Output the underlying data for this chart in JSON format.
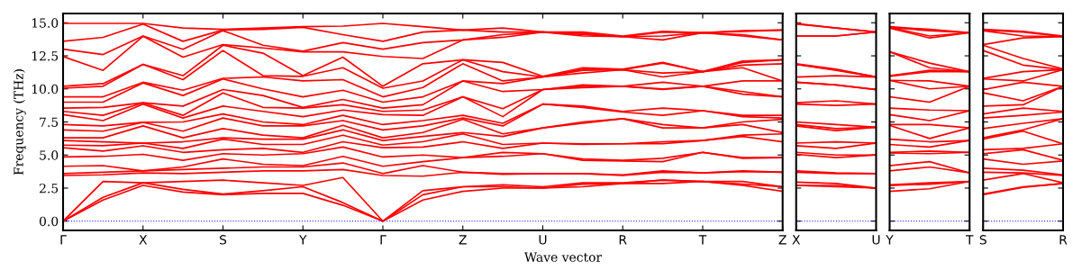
{
  "chart_data": [
    {
      "type": "line",
      "xlabel": "Wave vector",
      "ylabel": "Frequency (THz)",
      "categories": [
        "Γ",
        null,
        "X",
        null,
        "S",
        null,
        "Y",
        null,
        "Γ",
        null,
        "Z",
        null,
        "U",
        null,
        "R",
        null,
        "T",
        null,
        "Z"
      ],
      "ylim": [
        -0.7,
        15.7
      ],
      "yticks": [
        {
          "value": 0,
          "label": "0.0"
        },
        {
          "value": 2.5,
          "label": "2.5"
        },
        {
          "value": 5,
          "label": "5.0"
        },
        {
          "value": 7.5,
          "label": "7.5"
        },
        {
          "value": 10,
          "label": "10.0"
        },
        {
          "value": 12.5,
          "label": "12.5"
        },
        {
          "value": 15,
          "label": "15.0"
        }
      ],
      "ref_lines": [
        {
          "axis": "y",
          "value": 0,
          "color": "#0000ff",
          "line_style": "dotted"
        }
      ],
      "series": [
        {
          "color": "#ff0000",
          "values": [
            0,
            1.6,
            2.7,
            2.2,
            2.0,
            2.1,
            2.1,
            1.2,
            0,
            1.6,
            2.25,
            2.5,
            2.5,
            2.6,
            2.85,
            2.85,
            3.0,
            2.7,
            2.25
          ]
        },
        {
          "color": "#ff0000",
          "values": [
            0,
            1.8,
            2.9,
            2.4,
            2.05,
            2.3,
            2.6,
            1.4,
            0,
            2.0,
            2.6,
            2.6,
            2.5,
            2.8,
            2.85,
            3.1,
            3.0,
            2.8,
            2.6
          ]
        },
        {
          "color": "#ff0000",
          "values": [
            0,
            3.0,
            2.9,
            3.0,
            3.1,
            2.9,
            2.7,
            3.3,
            0,
            2.3,
            2.6,
            2.75,
            2.6,
            2.9,
            2.9,
            3.1,
            3.0,
            3.0,
            2.6
          ]
        },
        {
          "color": "#ff0000",
          "values": [
            3.45,
            3.5,
            3.65,
            3.6,
            3.7,
            3.8,
            3.8,
            3.9,
            3.45,
            3.4,
            3.7,
            3.55,
            3.6,
            3.6,
            3.45,
            3.7,
            3.65,
            3.75,
            3.7
          ]
        },
        {
          "color": "#ff0000",
          "values": [
            3.6,
            3.7,
            3.8,
            3.9,
            4.0,
            4.1,
            4.1,
            4.4,
            3.6,
            4.2,
            3.7,
            3.6,
            3.6,
            3.6,
            3.5,
            3.8,
            3.65,
            3.8,
            3.7
          ]
        },
        {
          "color": "#ff0000",
          "values": [
            4.15,
            4.2,
            3.8,
            4.1,
            4.7,
            4.3,
            4.2,
            4.9,
            4.15,
            4.5,
            4.8,
            4.9,
            5.1,
            4.6,
            4.55,
            4.5,
            5.2,
            4.75,
            4.8
          ]
        },
        {
          "color": "#ff0000",
          "values": [
            4.85,
            4.9,
            5.05,
            4.6,
            5.1,
            5.0,
            5.1,
            5.6,
            4.85,
            5.0,
            4.8,
            5.2,
            5.1,
            4.7,
            4.6,
            4.75,
            5.2,
            4.8,
            4.8
          ]
        },
        {
          "color": "#ff0000",
          "values": [
            5.55,
            5.3,
            5.7,
            5.2,
            5.4,
            5.5,
            5.2,
            6.0,
            5.55,
            5.6,
            6.0,
            5.5,
            5.9,
            5.8,
            5.85,
            5.85,
            6.1,
            6.4,
            6.0
          ]
        },
        {
          "color": "#ff0000",
          "values": [
            5.75,
            5.7,
            5.9,
            5.5,
            6.2,
            5.8,
            5.8,
            6.5,
            5.75,
            6.0,
            6.6,
            5.8,
            5.9,
            5.85,
            5.85,
            6.0,
            6.1,
            6.5,
            6.6
          ]
        },
        {
          "color": "#ff0000",
          "values": [
            6.1,
            6.0,
            5.9,
            6.0,
            6.3,
            6.2,
            6.2,
            6.9,
            6.1,
            6.4,
            6.7,
            6.4,
            7.05,
            7.4,
            7.75,
            7.05,
            7.05,
            7.3,
            6.7
          ]
        },
        {
          "color": "#ff0000",
          "values": [
            6.3,
            6.3,
            7.2,
            6.3,
            7.0,
            6.5,
            6.3,
            7.25,
            6.3,
            6.7,
            7.7,
            6.6,
            7.05,
            7.5,
            7.75,
            7.3,
            7.05,
            7.5,
            7.7
          ]
        },
        {
          "color": "#ff0000",
          "values": [
            6.9,
            6.8,
            7.47,
            6.8,
            7.8,
            7.2,
            7.2,
            7.6,
            6.9,
            7.2,
            7.8,
            7.2,
            8.85,
            8.6,
            8.25,
            8.0,
            8.35,
            7.9,
            7.8
          ]
        },
        {
          "color": "#ff0000",
          "values": [
            7.3,
            7.2,
            7.47,
            7.5,
            8.1,
            7.5,
            7.3,
            8.0,
            7.3,
            7.6,
            8.0,
            7.4,
            8.85,
            8.7,
            8.3,
            8.55,
            8.35,
            8.0,
            8.0
          ]
        },
        {
          "color": "#ff0000",
          "values": [
            8.05,
            7.6,
            8.85,
            7.8,
            8.7,
            8.3,
            7.9,
            8.4,
            8.05,
            8.0,
            9.4,
            7.9,
            9.95,
            10.1,
            10.2,
            9.95,
            10.2,
            9.6,
            9.4
          ]
        },
        {
          "color": "#ff0000",
          "values": [
            8.3,
            8.0,
            8.95,
            8.0,
            9.7,
            8.6,
            8.55,
            8.8,
            8.3,
            8.4,
            9.4,
            8.5,
            9.95,
            10.2,
            10.2,
            10.0,
            10.2,
            9.8,
            9.4
          ]
        },
        {
          "color": "#ff0000",
          "values": [
            8.55,
            8.6,
            8.95,
            8.7,
            9.95,
            9.5,
            8.6,
            9.2,
            8.55,
            8.8,
            10.6,
            9.8,
            9.95,
            10.3,
            10.2,
            10.5,
            10.2,
            10.6,
            10.6
          ]
        },
        {
          "color": "#ff0000",
          "values": [
            9.0,
            9.0,
            10.45,
            9.5,
            10.75,
            10.0,
            9.4,
            9.9,
            9.0,
            9.4,
            10.6,
            10.4,
            10.9,
            11.2,
            11.45,
            10.9,
            11.3,
            11.6,
            10.6
          ]
        },
        {
          "color": "#ff0000",
          "values": [
            9.4,
            9.4,
            10.5,
            9.9,
            10.8,
            10.9,
            10.6,
            10.7,
            9.4,
            10.1,
            11.9,
            10.6,
            10.9,
            11.4,
            11.45,
            11.2,
            11.3,
            11.8,
            11.9
          ]
        },
        {
          "color": "#ff0000",
          "values": [
            10.05,
            10.2,
            11.85,
            10.7,
            12.9,
            11.0,
            10.95,
            11.6,
            10.05,
            10.6,
            12.2,
            11.3,
            10.9,
            11.5,
            11.45,
            11.95,
            11.3,
            12.0,
            12.2
          ]
        },
        {
          "color": "#ff0000",
          "values": [
            10.2,
            10.4,
            11.85,
            11.0,
            13.3,
            12.7,
            11.0,
            12.4,
            10.2,
            11.9,
            12.2,
            12.0,
            10.95,
            11.6,
            11.5,
            12.0,
            11.3,
            12.1,
            12.2
          ]
        },
        {
          "color": "#ff0000",
          "values": [
            12.45,
            11.4,
            13.98,
            12.4,
            13.35,
            13.1,
            12.8,
            12.8,
            12.45,
            12.3,
            13.7,
            13.9,
            14.3,
            14.0,
            13.95,
            13.7,
            14.25,
            14.0,
            13.7
          ]
        },
        {
          "color": "#ff0000",
          "values": [
            13.0,
            12.6,
            14.0,
            13.0,
            14.4,
            13.3,
            12.85,
            13.5,
            13.0,
            13.5,
            13.7,
            14.1,
            14.3,
            14.1,
            13.95,
            14.0,
            14.25,
            14.1,
            13.7
          ]
        },
        {
          "color": "#ff0000",
          "values": [
            13.6,
            13.9,
            14.9,
            13.6,
            14.45,
            14.5,
            14.65,
            14.1,
            13.6,
            14.3,
            14.45,
            14.3,
            14.3,
            14.2,
            13.95,
            14.3,
            14.25,
            14.35,
            14.45
          ]
        },
        {
          "color": "#ff0000",
          "values": [
            14.95,
            14.95,
            14.95,
            14.6,
            14.5,
            14.6,
            14.7,
            14.75,
            14.95,
            14.7,
            14.45,
            14.6,
            14.3,
            14.3,
            14.0,
            14.35,
            14.25,
            14.4,
            14.45
          ]
        }
      ]
    },
    {
      "type": "line",
      "tick_labels": "x",
      "categories": [
        "X",
        null,
        "U"
      ],
      "ylim": [
        -0.7,
        15.7
      ],
      "yticks": [
        0,
        2.5,
        5,
        7.5,
        10,
        12.5,
        15
      ],
      "ref_lines": [
        {
          "axis": "y",
          "value": 0,
          "color": "#0000ff",
          "line_style": "dotted"
        }
      ],
      "series": [
        {
          "color": "#ff0000",
          "values": [
            2.7,
            2.6,
            2.5
          ]
        },
        {
          "color": "#ff0000",
          "values": [
            2.7,
            2.7,
            2.5
          ]
        },
        {
          "color": "#ff0000",
          "values": [
            2.95,
            2.85,
            2.5
          ]
        },
        {
          "color": "#ff0000",
          "values": [
            3.7,
            3.6,
            3.6
          ]
        },
        {
          "color": "#ff0000",
          "values": [
            3.8,
            3.65,
            3.6
          ]
        },
        {
          "color": "#ff0000",
          "values": [
            5.05,
            4.8,
            5.0
          ]
        },
        {
          "color": "#ff0000",
          "values": [
            5.2,
            5.0,
            5.0
          ]
        },
        {
          "color": "#ff0000",
          "values": [
            5.7,
            5.5,
            5.9
          ]
        },
        {
          "color": "#ff0000",
          "values": [
            5.9,
            6.0,
            5.9
          ]
        },
        {
          "color": "#ff0000",
          "values": [
            7.2,
            6.85,
            7.1
          ]
        },
        {
          "color": "#ff0000",
          "values": [
            7.3,
            7.0,
            7.1
          ]
        },
        {
          "color": "#ff0000",
          "values": [
            7.5,
            7.3,
            7.1
          ]
        },
        {
          "color": "#ff0000",
          "values": [
            8.85,
            8.75,
            8.85
          ]
        },
        {
          "color": "#ff0000",
          "values": [
            8.95,
            9.1,
            8.85
          ]
        },
        {
          "color": "#ff0000",
          "values": [
            10.5,
            10.3,
            9.95
          ]
        },
        {
          "color": "#ff0000",
          "values": [
            10.5,
            10.3,
            9.95
          ]
        },
        {
          "color": "#ff0000",
          "values": [
            10.9,
            11.0,
            10.9
          ]
        },
        {
          "color": "#ff0000",
          "values": [
            11.85,
            11.4,
            10.9
          ]
        },
        {
          "color": "#ff0000",
          "values": [
            11.85,
            11.45,
            10.9
          ]
        },
        {
          "color": "#ff0000",
          "values": [
            11.9,
            11.5,
            10.9
          ]
        },
        {
          "color": "#ff0000",
          "values": [
            14.0,
            14.0,
            14.3
          ]
        },
        {
          "color": "#ff0000",
          "values": [
            14.0,
            14.0,
            14.3
          ]
        },
        {
          "color": "#ff0000",
          "values": [
            14.9,
            14.6,
            14.3
          ]
        },
        {
          "color": "#ff0000",
          "values": [
            14.95,
            14.6,
            14.3
          ]
        }
      ]
    },
    {
      "type": "line",
      "tick_labels": "x",
      "categories": [
        "Y",
        null,
        "T"
      ],
      "ylim": [
        -0.7,
        15.7
      ],
      "yticks": [
        0,
        2.5,
        5,
        7.5,
        10,
        12.5,
        15
      ],
      "ref_lines": [
        {
          "axis": "y",
          "value": 0,
          "color": "#0000ff",
          "line_style": "dotted"
        }
      ],
      "series": [
        {
          "color": "#ff0000",
          "values": [
            2.25,
            2.45,
            3.0
          ]
        },
        {
          "color": "#ff0000",
          "values": [
            2.7,
            2.8,
            3.0
          ]
        },
        {
          "color": "#ff0000",
          "values": [
            2.75,
            2.9,
            3.0
          ]
        },
        {
          "color": "#ff0000",
          "values": [
            3.8,
            4.1,
            3.65
          ]
        },
        {
          "color": "#ff0000",
          "values": [
            4.2,
            4.5,
            3.65
          ]
        },
        {
          "color": "#ff0000",
          "values": [
            5.15,
            5.1,
            5.2
          ]
        },
        {
          "color": "#ff0000",
          "values": [
            5.2,
            5.3,
            5.2
          ]
        },
        {
          "color": "#ff0000",
          "values": [
            5.8,
            5.6,
            6.1
          ]
        },
        {
          "color": "#ff0000",
          "values": [
            6.2,
            6.0,
            6.1
          ]
        },
        {
          "color": "#ff0000",
          "values": [
            7.25,
            6.25,
            7.05
          ]
        },
        {
          "color": "#ff0000",
          "values": [
            7.3,
            7.3,
            7.05
          ]
        },
        {
          "color": "#ff0000",
          "values": [
            8.05,
            7.6,
            8.35
          ]
        },
        {
          "color": "#ff0000",
          "values": [
            8.55,
            8.4,
            8.35
          ]
        },
        {
          "color": "#ff0000",
          "values": [
            9.4,
            9.0,
            10.2
          ]
        },
        {
          "color": "#ff0000",
          "values": [
            10.65,
            10.0,
            10.2
          ]
        },
        {
          "color": "#ff0000",
          "values": [
            10.65,
            10.6,
            10.2
          ]
        },
        {
          "color": "#ff0000",
          "values": [
            10.95,
            11.3,
            11.3
          ]
        },
        {
          "color": "#ff0000",
          "values": [
            11.0,
            11.4,
            11.3
          ]
        },
        {
          "color": "#ff0000",
          "values": [
            12.8,
            11.6,
            11.3
          ]
        },
        {
          "color": "#ff0000",
          "values": [
            12.8,
            11.95,
            11.3
          ]
        },
        {
          "color": "#ff0000",
          "values": [
            14.6,
            13.85,
            14.25
          ]
        },
        {
          "color": "#ff0000",
          "values": [
            14.65,
            14.0,
            14.25
          ]
        },
        {
          "color": "#ff0000",
          "values": [
            14.65,
            14.4,
            14.25
          ]
        },
        {
          "color": "#ff0000",
          "values": [
            14.7,
            14.5,
            14.25
          ]
        }
      ]
    },
    {
      "type": "line",
      "tick_labels": "x",
      "categories": [
        "S",
        null,
        "R"
      ],
      "ylim": [
        -0.7,
        15.7
      ],
      "yticks": [
        0,
        2.5,
        5,
        7.5,
        10,
        12.5,
        15
      ],
      "ref_lines": [
        {
          "axis": "y",
          "value": 0,
          "color": "#0000ff",
          "line_style": "dotted"
        }
      ],
      "series": [
        {
          "color": "#ff0000",
          "values": [
            2.0,
            2.55,
            2.85
          ]
        },
        {
          "color": "#ff0000",
          "values": [
            2.05,
            2.6,
            2.85
          ]
        },
        {
          "color": "#ff0000",
          "values": [
            3.1,
            3.6,
            2.9
          ]
        },
        {
          "color": "#ff0000",
          "values": [
            3.7,
            3.65,
            3.45
          ]
        },
        {
          "color": "#ff0000",
          "values": [
            4.0,
            3.85,
            3.5
          ]
        },
        {
          "color": "#ff0000",
          "values": [
            4.7,
            4.3,
            4.55
          ]
        },
        {
          "color": "#ff0000",
          "values": [
            5.1,
            5.4,
            4.6
          ]
        },
        {
          "color": "#ff0000",
          "values": [
            5.4,
            5.5,
            5.85
          ]
        },
        {
          "color": "#ff0000",
          "values": [
            6.2,
            6.8,
            5.85
          ]
        },
        {
          "color": "#ff0000",
          "values": [
            6.3,
            6.9,
            7.75
          ]
        },
        {
          "color": "#ff0000",
          "values": [
            7.0,
            7.4,
            7.75
          ]
        },
        {
          "color": "#ff0000",
          "values": [
            7.8,
            8.0,
            8.25
          ]
        },
        {
          "color": "#ff0000",
          "values": [
            8.1,
            8.55,
            8.3
          ]
        },
        {
          "color": "#ff0000",
          "values": [
            8.7,
            8.8,
            10.2
          ]
        },
        {
          "color": "#ff0000",
          "values": [
            9.7,
            9.1,
            10.2
          ]
        },
        {
          "color": "#ff0000",
          "values": [
            9.95,
            10.5,
            10.2
          ]
        },
        {
          "color": "#ff0000",
          "values": [
            10.75,
            10.6,
            11.45
          ]
        },
        {
          "color": "#ff0000",
          "values": [
            10.8,
            11.3,
            11.45
          ]
        },
        {
          "color": "#ff0000",
          "values": [
            12.9,
            11.8,
            11.45
          ]
        },
        {
          "color": "#ff0000",
          "values": [
            13.3,
            12.3,
            11.5
          ]
        },
        {
          "color": "#ff0000",
          "values": [
            13.35,
            13.85,
            13.95
          ]
        },
        {
          "color": "#ff0000",
          "values": [
            14.4,
            14.0,
            13.95
          ]
        },
        {
          "color": "#ff0000",
          "values": [
            14.45,
            14.3,
            13.95
          ]
        },
        {
          "color": "#ff0000",
          "values": [
            14.5,
            14.35,
            14.0
          ]
        }
      ]
    }
  ]
}
